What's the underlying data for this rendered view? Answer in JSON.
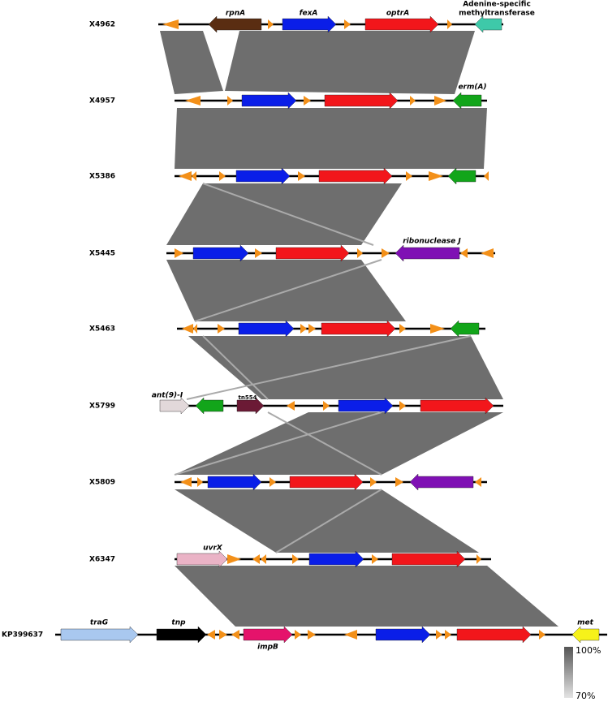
{
  "tracks": [
    {
      "label": "X4962",
      "genes": [
        "rpnA",
        "fexA",
        "optrA",
        [
          "Adenine-specific",
          "methyltransferase"
        ]
      ]
    },
    {
      "label": "X4957",
      "genes": [
        "erm(A)"
      ]
    },
    {
      "label": "X5386",
      "genes": []
    },
    {
      "label": "X5445",
      "genes": [
        "ribonuclease J"
      ]
    },
    {
      "label": "X5463",
      "genes": []
    },
    {
      "label": "X5799",
      "genes": [
        "ant(9)-I",
        "tn554"
      ]
    },
    {
      "label": "X5809",
      "genes": []
    },
    {
      "label": "X6347",
      "genes": [
        "uvrX"
      ]
    },
    {
      "label": "KP399637",
      "genes": [
        "traG",
        "tnp",
        "impB",
        "met"
      ]
    }
  ],
  "legend": {
    "max": "100%",
    "min": "70%"
  }
}
